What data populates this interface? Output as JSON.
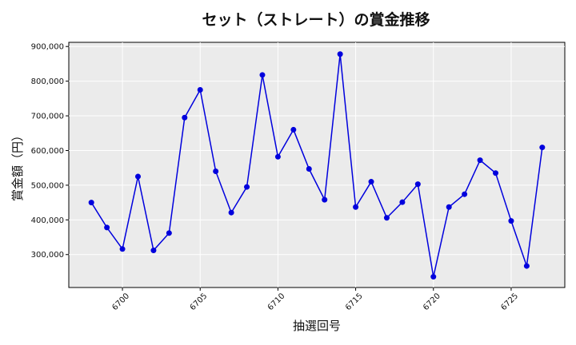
{
  "chart_data": {
    "type": "line",
    "title": "セット（ストレート）の賞金推移",
    "xlabel": "抽選回号",
    "ylabel": "賞金額（円）",
    "xlim": [
      6696.55,
      6728.45
    ],
    "ylim": [
      205000,
      912000
    ],
    "grid": true,
    "x_ticks": [
      6700,
      6705,
      6710,
      6715,
      6720,
      6725
    ],
    "x_tick_labels": [
      "6700",
      "6705",
      "6710",
      "6715",
      "6720",
      "6725"
    ],
    "y_ticks": [
      300000,
      400000,
      500000,
      600000,
      700000,
      800000,
      900000
    ],
    "y_tick_labels": [
      "300,000",
      "400,000",
      "500,000",
      "600,000",
      "700,000",
      "800,000",
      "900,000"
    ],
    "series": [
      {
        "color": "#0000dd",
        "x": [
          6698,
          6699,
          6700,
          6701,
          6702,
          6703,
          6704,
          6705,
          6706,
          6707,
          6708,
          6709,
          6710,
          6711,
          6712,
          6713,
          6714,
          6715,
          6716,
          6717,
          6718,
          6719,
          6720,
          6721,
          6722,
          6723,
          6724,
          6725,
          6726,
          6727
        ],
        "y": [
          450000,
          378000,
          316000,
          525000,
          312000,
          362000,
          695000,
          775000,
          540000,
          421000,
          495000,
          818000,
          582000,
          660000,
          547000,
          458000,
          878000,
          437000,
          510000,
          406000,
          451000,
          503000,
          236000,
          437000,
          474000,
          572000,
          535000,
          397000,
          267000,
          609000
        ]
      }
    ]
  },
  "colors": {
    "plot_background": "#ebebeb",
    "grid": "#ffffff",
    "line": "#0000dd"
  }
}
